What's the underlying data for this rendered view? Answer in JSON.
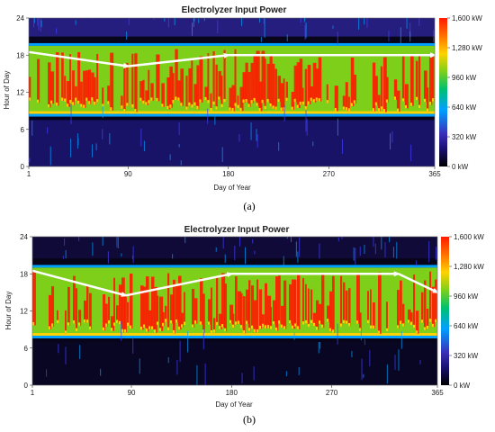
{
  "chart_data": [
    {
      "type": "heatmap",
      "title": "Electrolyzer Input Power",
      "xlabel": "Day of Year",
      "ylabel": "Hour of Day",
      "xlim": [
        1,
        365
      ],
      "ylim": [
        0,
        24
      ],
      "x_ticks": [
        "1",
        "90",
        "180",
        "270",
        "365"
      ],
      "y_ticks": [
        "0",
        "6",
        "12",
        "18",
        "24"
      ],
      "colorbar": {
        "labels": [
          "0 kW",
          "320 kW",
          "640 kW",
          "960 kW",
          "1,280 kW",
          "1,600 kW"
        ],
        "range": [
          0,
          1600
        ],
        "unit": "kW"
      },
      "caption": "(a)",
      "active_hours_start": 8.5,
      "active_hours_end": 19.5,
      "arrows": [
        {
          "from": [
            1,
            18.5
          ],
          "to": [
            90,
            16.2
          ]
        },
        {
          "from": [
            90,
            16.2
          ],
          "to": [
            180,
            18
          ]
        },
        {
          "from": [
            180,
            18
          ],
          "to": [
            365,
            18
          ]
        }
      ],
      "colors": [
        "#000000",
        "#3a2fb8",
        "#00a0ff",
        "#7dcf1a",
        "#ffd200",
        "#ff1a00"
      ]
    },
    {
      "type": "heatmap",
      "title": "Electrolyzer Input Power",
      "xlabel": "Day of Year",
      "ylabel": "Hour of Day",
      "xlim": [
        1,
        365
      ],
      "ylim": [
        0,
        24
      ],
      "x_ticks": [
        "1",
        "90",
        "180",
        "270",
        "365"
      ],
      "y_ticks": [
        "0",
        "6",
        "12",
        "18",
        "24"
      ],
      "colorbar": {
        "labels": [
          "0 kW",
          "320 kW",
          "640 kW",
          "960 kW",
          "1,280 kW",
          "1,600 kW"
        ],
        "range": [
          0,
          1600
        ],
        "unit": "kW"
      },
      "caption": "(b)",
      "active_hours_start": 8,
      "active_hours_end": 19,
      "arrows": [
        {
          "from": [
            1,
            18.5
          ],
          "to": [
            85,
            14.5
          ]
        },
        {
          "from": [
            85,
            14.5
          ],
          "to": [
            180,
            18
          ]
        },
        {
          "from": [
            180,
            18
          ],
          "to": [
            330,
            18
          ]
        },
        {
          "from": [
            330,
            18
          ],
          "to": [
            365,
            15
          ]
        }
      ],
      "colors": [
        "#000000",
        "#3a2fb8",
        "#00a0ff",
        "#7dcf1a",
        "#ffd200",
        "#ff1a00"
      ]
    }
  ]
}
